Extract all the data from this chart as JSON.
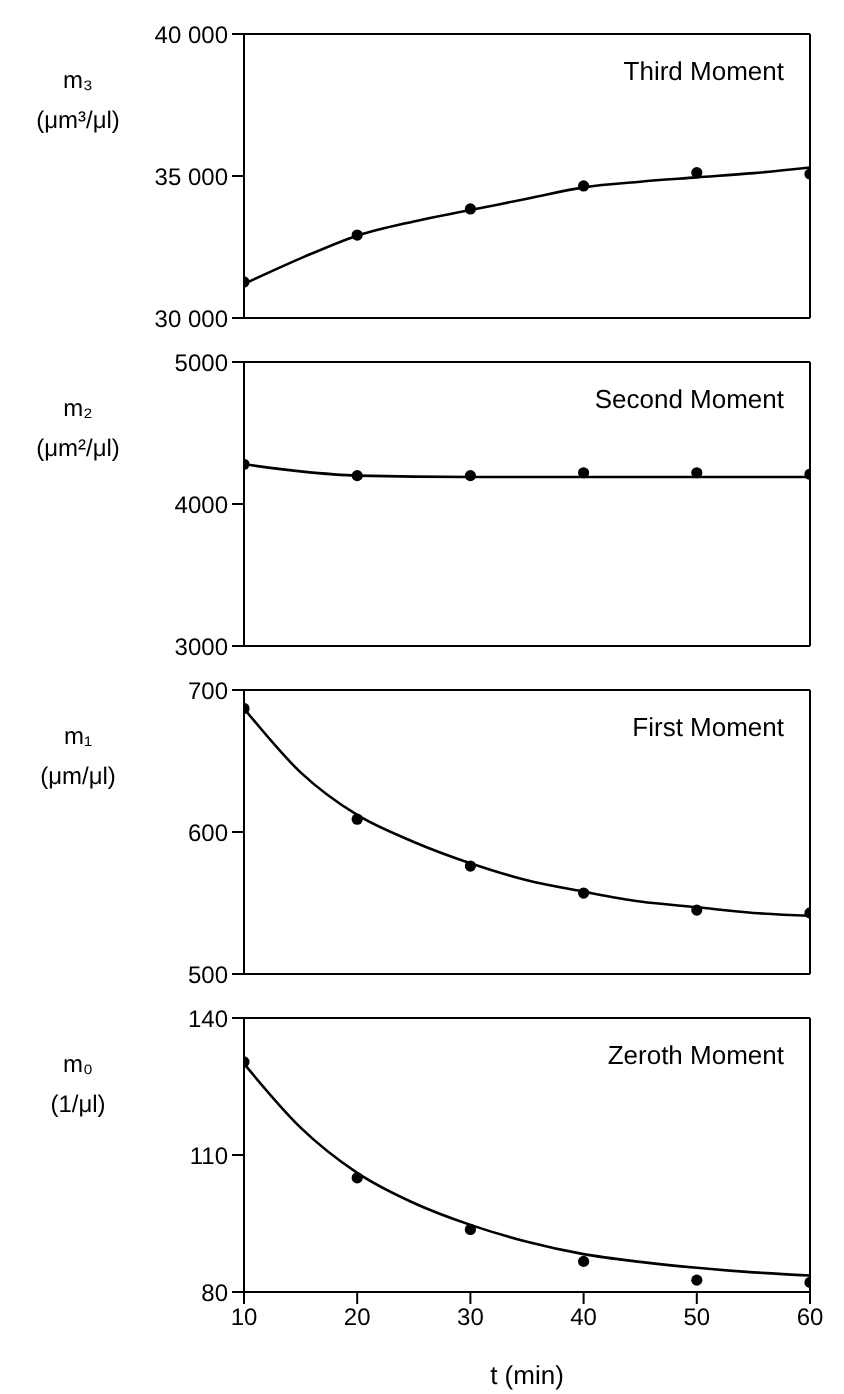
{
  "chart_data": [
    {
      "type": "scatter",
      "title": "Third Moment",
      "ylabel": "m₃ (μm³/μl)",
      "xlim": [
        10,
        60
      ],
      "ylim": [
        30000,
        40000
      ],
      "yticks": [
        {
          "value": 30000,
          "label": "30 000"
        },
        {
          "value": 35000,
          "label": "35 000"
        },
        {
          "value": 40000,
          "label": "40 000"
        }
      ],
      "tick_labels": "y",
      "x": [
        10,
        20,
        30,
        40,
        50,
        60
      ],
      "series": [
        {
          "color": "#000000",
          "marker": "circle",
          "values": [
            31270,
            32920,
            33840,
            34650,
            35120,
            35070
          ]
        },
        {
          "type": "line",
          "color": "#000000",
          "marker": "none",
          "line_style": "solid",
          "x": [
            10,
            15,
            20,
            25,
            30,
            35,
            40,
            45,
            50,
            55,
            60
          ],
          "values": [
            31200,
            32100,
            32900,
            33400,
            33800,
            34200,
            34600,
            34800,
            34950,
            35100,
            35300
          ]
        }
      ]
    },
    {
      "type": "scatter",
      "title": "Second Moment",
      "ylabel": "m₂ (μm²/μl)",
      "xlim": [
        10,
        60
      ],
      "ylim": [
        3000,
        5000
      ],
      "yticks": [
        3000,
        4000,
        5000
      ],
      "tick_labels": "y",
      "x": [
        10,
        20,
        30,
        40,
        50,
        60
      ],
      "series": [
        {
          "color": "#000000",
          "marker": "circle",
          "values": [
            4280,
            4200,
            4200,
            4220,
            4220,
            4210
          ]
        },
        {
          "type": "line",
          "color": "#000000",
          "marker": "none",
          "line_style": "solid",
          "x": [
            10,
            15,
            20,
            30,
            40,
            50,
            60
          ],
          "values": [
            4280,
            4230,
            4200,
            4190,
            4190,
            4190,
            4190
          ]
        }
      ]
    },
    {
      "type": "scatter",
      "title": "First Moment",
      "ylabel": "m₁ (μm/μl)",
      "xlim": [
        10,
        60
      ],
      "ylim": [
        500,
        700
      ],
      "yticks": [
        500,
        600,
        700
      ],
      "tick_labels": "y",
      "x": [
        10,
        20,
        30,
        40,
        50,
        60
      ],
      "series": [
        {
          "color": "#000000",
          "marker": "circle",
          "values": [
            687,
            609,
            576,
            557,
            545,
            543
          ]
        },
        {
          "type": "line",
          "color": "#000000",
          "marker": "none",
          "line_style": "solid",
          "x": [
            10,
            15,
            20,
            25,
            30,
            35,
            40,
            45,
            50,
            55,
            60
          ],
          "values": [
            687,
            642,
            612,
            593,
            578,
            566,
            558,
            551,
            547,
            543,
            541
          ]
        }
      ]
    },
    {
      "type": "scatter",
      "title": "Zeroth Moment",
      "ylabel": "m₀ (1/μl)",
      "xlabel": "t  (min)",
      "xlim": [
        10,
        60
      ],
      "xticks": [
        10,
        20,
        30,
        40,
        50,
        60
      ],
      "ylim": [
        80,
        140
      ],
      "yticks": [
        80,
        110,
        140
      ],
      "x": [
        10,
        20,
        30,
        40,
        50,
        60
      ],
      "series": [
        {
          "color": "#000000",
          "marker": "circle",
          "values": [
            130.4,
            105,
            93.7,
            86.7,
            82.6,
            82.1
          ]
        },
        {
          "type": "line",
          "color": "#000000",
          "marker": "none",
          "line_style": "solid",
          "x": [
            10,
            15,
            20,
            25,
            30,
            35,
            40,
            45,
            50,
            55,
            60
          ],
          "values": [
            130,
            116,
            106.1,
            99.5,
            94.7,
            91,
            88.3,
            86.6,
            85.3,
            84.3,
            83.6
          ]
        }
      ]
    }
  ]
}
